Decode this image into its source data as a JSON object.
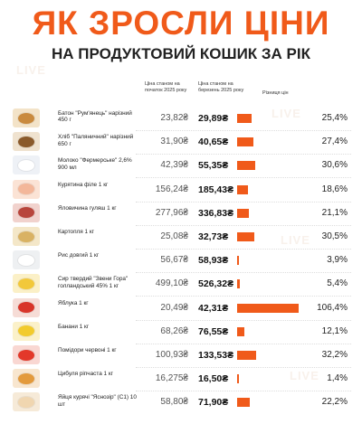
{
  "title": "ЯК ЗРОСЛИ ЦІНИ",
  "subtitle": "НА ПРОДУКТОВИЙ КОШИК ЗА РІК",
  "headers": {
    "old_price": "Ціна станом на початок 2025 року",
    "new_price": "Ціна станом на березень 2025 року",
    "growth": "Різниця цін"
  },
  "watermark": "LIVE",
  "colors": {
    "accent": "#f05a1a",
    "text": "#222222"
  },
  "chart_data": {
    "type": "bar",
    "categories": [
      "Батон \"Рум'янець\" нарізний 450 г",
      "Хліб \"Паляничний\" нарізний 650 г",
      "Молоко \"Фермерське\" 2,6% 900 мл",
      "Курятина філе 1 кг",
      "Яловичина гуляш 1 кг",
      "Картопля 1 кг",
      "Рис довгий 1 кг",
      "Сир твердий \"Звени Гора\" голландський 45% 1 кг",
      "Яблука 1 кг",
      "Банани 1 кг",
      "Помідори червоні 1 кг",
      "Цибуля ріпчаста 1 кг",
      "Яйця курячі \"Яснозір\" (С1) 10 шт"
    ],
    "old_prices": [
      "23,82₴",
      "31,90₴",
      "42,39₴",
      "156,24₴",
      "277,96₴",
      "25,08₴",
      "56,67₴",
      "499,10₴",
      "20,49₴",
      "68,26₴",
      "100,93₴",
      "16,275₴",
      "58,80₴"
    ],
    "new_prices": [
      "29,89₴",
      "40,65₴",
      "55,35₴",
      "185,43₴",
      "336,83₴",
      "32,73₴",
      "58,93₴",
      "526,32₴",
      "42,31₴",
      "76,55₴",
      "133,53₴",
      "16,50₴",
      "71,90₴"
    ],
    "growth_labels": [
      "25,4%",
      "27,4%",
      "30,6%",
      "18,6%",
      "21,1%",
      "30,5%",
      "3,9%",
      "5,4%",
      "106,4%",
      "12,1%",
      "32,2%",
      "1,4%",
      "22,2%"
    ],
    "values": [
      25.4,
      27.4,
      30.6,
      18.6,
      21.1,
      30.5,
      3.9,
      5.4,
      106.4,
      12.1,
      32.2,
      1.4,
      22.2
    ],
    "xlabel": "",
    "ylabel": "",
    "ylim": [
      0,
      106.4
    ],
    "grid": false,
    "legend": "none"
  },
  "product_icons": [
    {
      "name": "bread-loaf-icon",
      "bg": "#f3e3c8",
      "fg": "#c98a3e"
    },
    {
      "name": "rye-bread-icon",
      "bg": "#efe2cf",
      "fg": "#8a5a2b"
    },
    {
      "name": "milk-pack-icon",
      "bg": "#eef1f6",
      "fg": "#ffffff"
    },
    {
      "name": "chicken-fillet-icon",
      "bg": "#fbe3d5",
      "fg": "#f3b79a"
    },
    {
      "name": "beef-goulash-icon",
      "bg": "#f1d2cd",
      "fg": "#b8453c"
    },
    {
      "name": "potato-icon",
      "bg": "#f4e7c8",
      "fg": "#d9b263"
    },
    {
      "name": "rice-icon",
      "bg": "#eef0f2",
      "fg": "#ffffff"
    },
    {
      "name": "cheese-icon",
      "bg": "#fbf0c7",
      "fg": "#f2c83a"
    },
    {
      "name": "apples-icon",
      "bg": "#f6dcd6",
      "fg": "#d8352a"
    },
    {
      "name": "bananas-icon",
      "bg": "#fbf1c9",
      "fg": "#f2cb2c"
    },
    {
      "name": "tomatoes-icon",
      "bg": "#f9d7d2",
      "fg": "#e3382a"
    },
    {
      "name": "onion-icon",
      "bg": "#f8e6cf",
      "fg": "#e39a3c"
    },
    {
      "name": "eggs-icon",
      "bg": "#f6ead8",
      "fg": "#f0d6b0"
    }
  ]
}
